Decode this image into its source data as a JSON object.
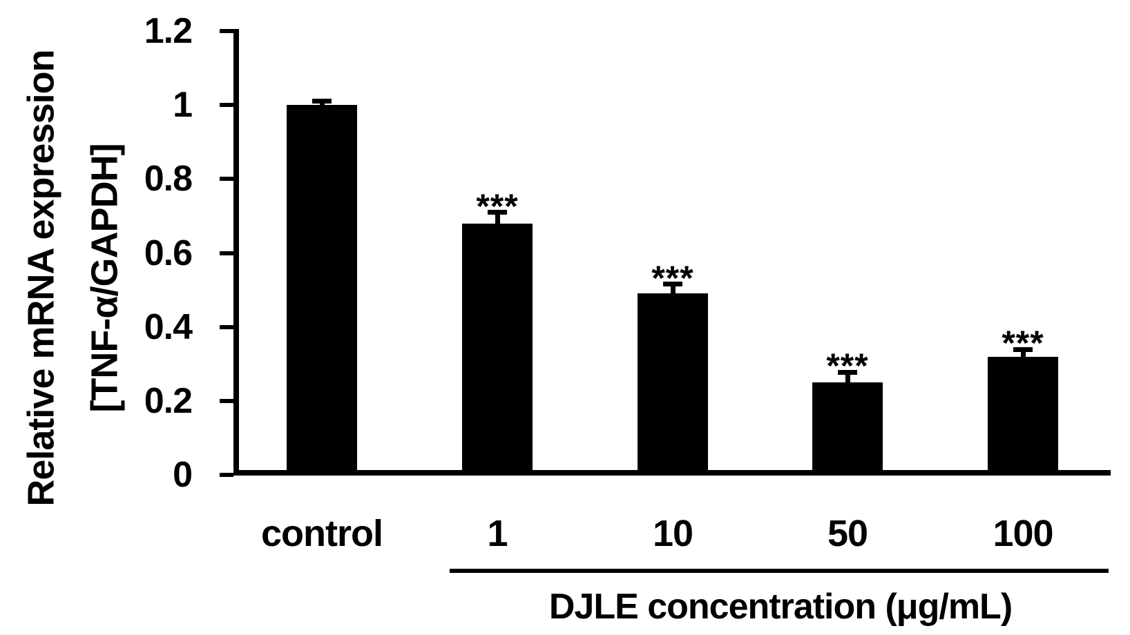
{
  "chart_data": {
    "type": "bar",
    "title": "",
    "categories": [
      "control",
      "1",
      "10",
      "50",
      "100"
    ],
    "values": [
      1.0,
      0.68,
      0.49,
      0.25,
      0.32
    ],
    "errors_upper": [
      0.01,
      0.03,
      0.026,
      0.028,
      0.019
    ],
    "significance": [
      "",
      "***",
      "***",
      "***",
      "***"
    ],
    "ylabel_line1": "Relative mRNA expression",
    "ylabel_line2": "[TNF-α/GAPDH]",
    "xlabel": "DJLE concentration (μg/mL)",
    "x_group_label_applies_to": [
      "1",
      "10",
      "50",
      "100"
    ],
    "ylim": [
      0,
      1.2
    ],
    "ytick_step": 0.2,
    "ytick_labels": [
      "0",
      "0.2",
      "0.4",
      "0.6",
      "0.8",
      "1",
      "1.2"
    ],
    "bar_color": "#000000",
    "background_color": "#ffffff",
    "grid": false,
    "legend": "none"
  }
}
